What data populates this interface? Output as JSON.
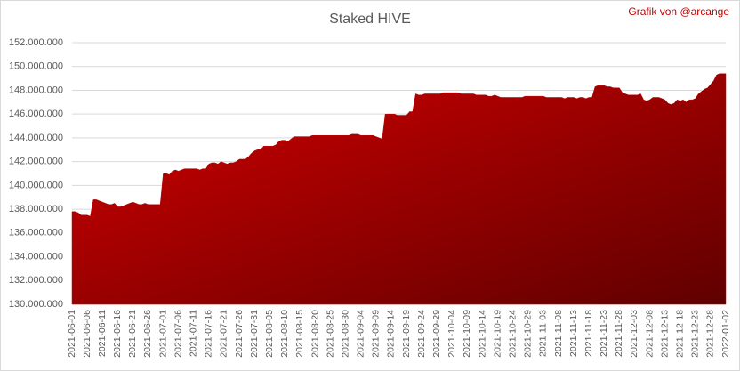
{
  "chart_data": {
    "type": "area",
    "title": "Staked HIVE",
    "annotation": "Grafik von @arcange",
    "color": "#c00000",
    "grid": true,
    "categories": [
      "2021-06-01",
      null,
      null,
      null,
      null,
      "2021-06-06",
      null,
      null,
      null,
      null,
      "2021-06-11",
      null,
      null,
      null,
      null,
      "2021-06-16",
      null,
      null,
      null,
      null,
      "2021-06-21",
      null,
      null,
      null,
      null,
      "2021-06-26",
      null,
      null,
      null,
      null,
      "2021-07-01",
      null,
      null,
      null,
      null,
      "2021-07-06",
      null,
      null,
      null,
      null,
      "2021-07-11",
      null,
      null,
      null,
      null,
      "2021-07-16",
      null,
      null,
      null,
      null,
      "2021-07-21",
      null,
      null,
      null,
      null,
      "2021-07-26",
      null,
      null,
      null,
      null,
      "2021-07-31",
      null,
      null,
      null,
      null,
      "2021-08-05",
      null,
      null,
      null,
      null,
      "2021-08-10",
      null,
      null,
      null,
      null,
      "2021-08-15",
      null,
      null,
      null,
      null,
      "2021-08-20",
      null,
      null,
      null,
      null,
      "2021-08-25",
      null,
      null,
      null,
      null,
      "2021-08-30",
      null,
      null,
      null,
      null,
      "2021-09-04",
      null,
      null,
      null,
      null,
      "2021-09-09",
      null,
      null,
      null,
      null,
      "2021-09-14",
      null,
      null,
      null,
      null,
      "2021-09-19",
      null,
      null,
      null,
      null,
      "2021-09-24",
      null,
      null,
      null,
      null,
      "2021-09-29",
      null,
      null,
      null,
      null,
      "2021-10-04",
      null,
      null,
      null,
      null,
      "2021-10-09",
      null,
      null,
      null,
      null,
      "2021-10-14",
      null,
      null,
      null,
      null,
      "2021-10-19",
      null,
      null,
      null,
      null,
      "2021-10-24",
      null,
      null,
      null,
      null,
      "2021-10-29",
      null,
      null,
      null,
      null,
      "2021-11-03",
      null,
      null,
      null,
      null,
      "2021-11-08",
      null,
      null,
      null,
      null,
      "2021-11-13",
      null,
      null,
      null,
      null,
      "2021-11-18",
      null,
      null,
      null,
      null,
      "2021-11-23",
      null,
      null,
      null,
      null,
      "2021-11-28",
      null,
      null,
      null,
      null,
      "2021-12-03",
      null,
      null,
      null,
      null,
      "2021-12-08",
      null,
      null,
      null,
      null,
      "2021-12-13",
      null,
      null,
      null,
      null,
      "2021-12-18",
      null,
      null,
      null,
      null,
      "2021-12-23",
      null,
      null,
      null,
      null,
      "2021-12-28",
      null,
      null,
      null,
      null,
      "2022-01-02"
    ],
    "values": [
      137800000,
      137800000,
      137700000,
      137500000,
      137500000,
      137500000,
      137400000,
      138800000,
      138800000,
      138700000,
      138600000,
      138500000,
      138400000,
      138400000,
      138500000,
      138200000,
      138200000,
      138300000,
      138400000,
      138500000,
      138600000,
      138500000,
      138400000,
      138400000,
      138500000,
      138400000,
      138400000,
      138400000,
      138400000,
      138400000,
      141000000,
      141000000,
      140900000,
      141200000,
      141300000,
      141200000,
      141300000,
      141400000,
      141400000,
      141400000,
      141400000,
      141400000,
      141300000,
      141400000,
      141400000,
      141800000,
      141900000,
      141900000,
      141800000,
      142000000,
      141900000,
      141800000,
      141900000,
      141900000,
      142000000,
      142200000,
      142200000,
      142200000,
      142400000,
      142700000,
      142900000,
      143000000,
      143000000,
      143300000,
      143300000,
      143300000,
      143300000,
      143400000,
      143700000,
      143800000,
      143800000,
      143700000,
      143900000,
      144100000,
      144100000,
      144100000,
      144100000,
      144100000,
      144100000,
      144200000,
      144200000,
      144200000,
      144200000,
      144200000,
      144200000,
      144200000,
      144200000,
      144200000,
      144200000,
      144200000,
      144200000,
      144200000,
      144300000,
      144300000,
      144300000,
      144200000,
      144200000,
      144200000,
      144200000,
      144200000,
      144100000,
      144000000,
      143900000,
      146000000,
      146000000,
      146000000,
      146000000,
      145900000,
      145900000,
      145900000,
      145900000,
      146200000,
      146200000,
      147700000,
      147600000,
      147600000,
      147700000,
      147700000,
      147700000,
      147700000,
      147700000,
      147700000,
      147800000,
      147800000,
      147800000,
      147800000,
      147800000,
      147800000,
      147700000,
      147700000,
      147700000,
      147700000,
      147700000,
      147600000,
      147600000,
      147600000,
      147600000,
      147500000,
      147500000,
      147600000,
      147500000,
      147400000,
      147400000,
      147400000,
      147400000,
      147400000,
      147400000,
      147400000,
      147400000,
      147500000,
      147500000,
      147500000,
      147500000,
      147500000,
      147500000,
      147500000,
      147400000,
      147400000,
      147400000,
      147400000,
      147400000,
      147400000,
      147300000,
      147400000,
      147400000,
      147400000,
      147300000,
      147400000,
      147400000,
      147300000,
      147400000,
      147400000,
      148300000,
      148400000,
      148400000,
      148400000,
      148300000,
      148300000,
      148200000,
      148200000,
      148200000,
      147800000,
      147700000,
      147600000,
      147600000,
      147600000,
      147600000,
      147700000,
      147200000,
      147100000,
      147200000,
      147400000,
      147400000,
      147400000,
      147300000,
      147200000,
      146900000,
      146800000,
      146900000,
      147200000,
      147100000,
      147200000,
      147000000,
      147200000,
      147200000,
      147300000,
      147700000,
      147900000,
      148100000,
      148200000,
      148500000,
      148800000,
      149300000,
      149400000,
      149400000,
      149400000
    ],
    "ylim": [
      130000000,
      152000000
    ],
    "yticks": [
      {
        "value": 130000000,
        "label": "130.000.000"
      },
      {
        "value": 132000000,
        "label": "132.000.000"
      },
      {
        "value": 134000000,
        "label": "134.000.000"
      },
      {
        "value": 136000000,
        "label": "136.000.000"
      },
      {
        "value": 138000000,
        "label": "138.000.000"
      },
      {
        "value": 140000000,
        "label": "140.000.000"
      },
      {
        "value": 142000000,
        "label": "142.000.000"
      },
      {
        "value": 144000000,
        "label": "144.000.000"
      },
      {
        "value": 146000000,
        "label": "146.000.000"
      },
      {
        "value": 148000000,
        "label": "148.000.000"
      },
      {
        "value": 150000000,
        "label": "150.000.000"
      },
      {
        "value": 152000000,
        "label": "152.000.000"
      }
    ]
  }
}
